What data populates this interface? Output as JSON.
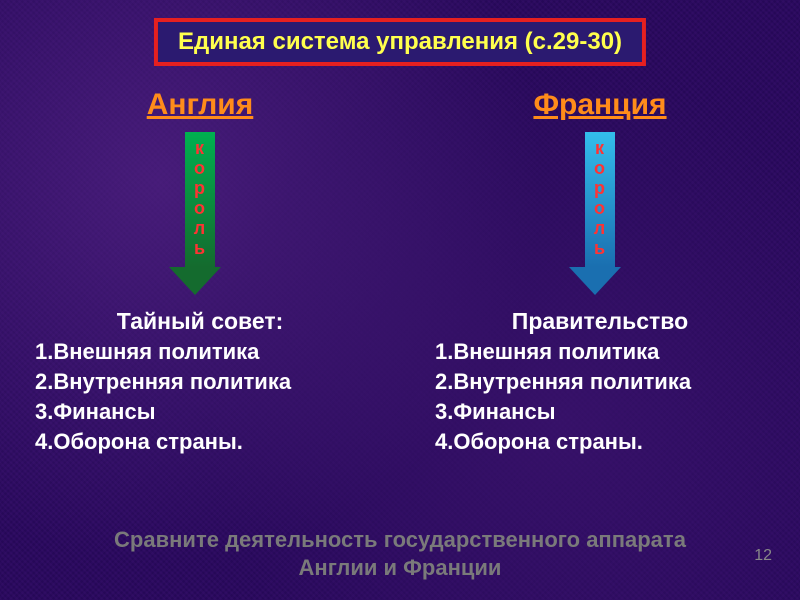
{
  "title": "Единая система управления (с.29-30)",
  "colors": {
    "title_border": "#e62020",
    "title_bg": "#2b1a70",
    "title_text": "#ffff4d",
    "country_text": "#ff8c1a",
    "arrow_label": "#ff3333",
    "body_text": "#ffffff",
    "footer_text": "#7a7a7a",
    "arrow_left_top": "#00b050",
    "arrow_left_bottom": "#146b2e",
    "arrow_right_top": "#33bdeb",
    "arrow_right_bottom": "#1a6fb0"
  },
  "left": {
    "country": "Англия",
    "arrow_word": "король",
    "subhead": "Тайный совет:",
    "items": [
      "1.Внешняя политика",
      "2.Внутренняя политика",
      "3.Финансы",
      "4.Оборона страны."
    ]
  },
  "right": {
    "country": "Франция",
    "arrow_word": "король",
    "subhead": "Правительство",
    "items": [
      "1.Внешняя политика",
      "2.Внутренняя политика",
      "3.Финансы",
      "4.Оборона страны."
    ]
  },
  "footer_line1": "Сравните деятельность государственного аппарата",
  "footer_line2": "Англии и Франции",
  "slide_number": "12"
}
